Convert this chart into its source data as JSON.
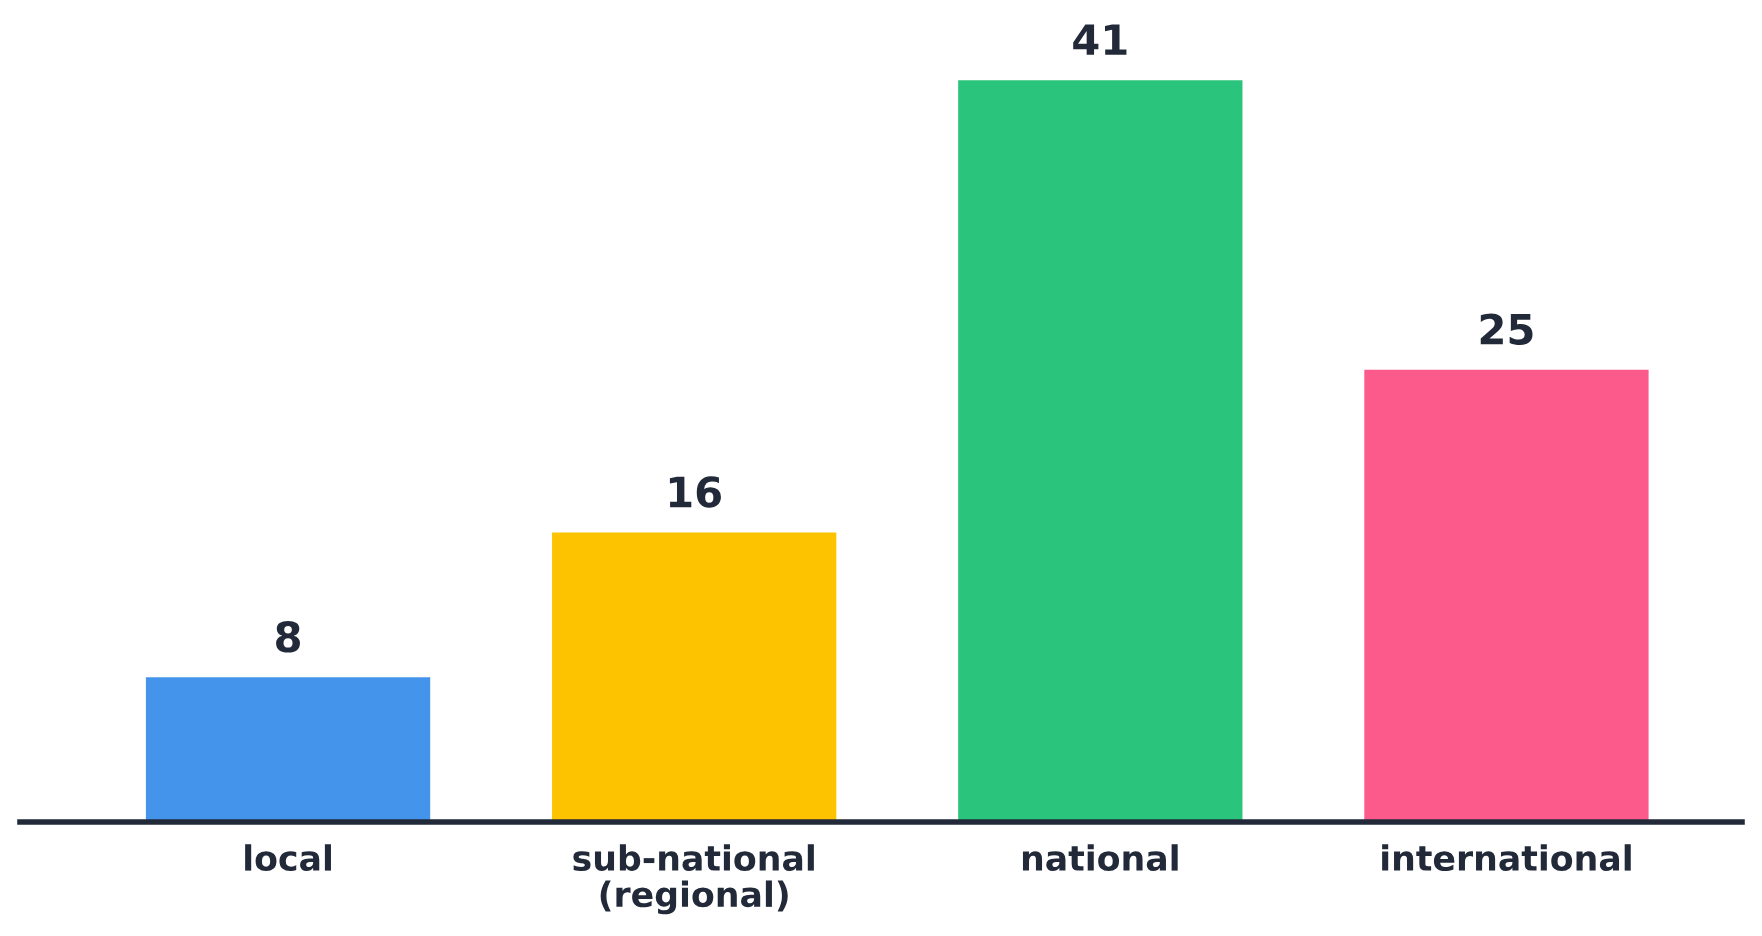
{
  "chart_data": {
    "type": "bar",
    "categories": [
      "local",
      "sub-national\n(regional)",
      "national",
      "international"
    ],
    "values": [
      8,
      16,
      41,
      25
    ],
    "colors": [
      "#4394ea",
      "#fdc300",
      "#2bc47d",
      "#fd5a8c"
    ],
    "data_labels": true,
    "grid": false,
    "legend": false
  }
}
